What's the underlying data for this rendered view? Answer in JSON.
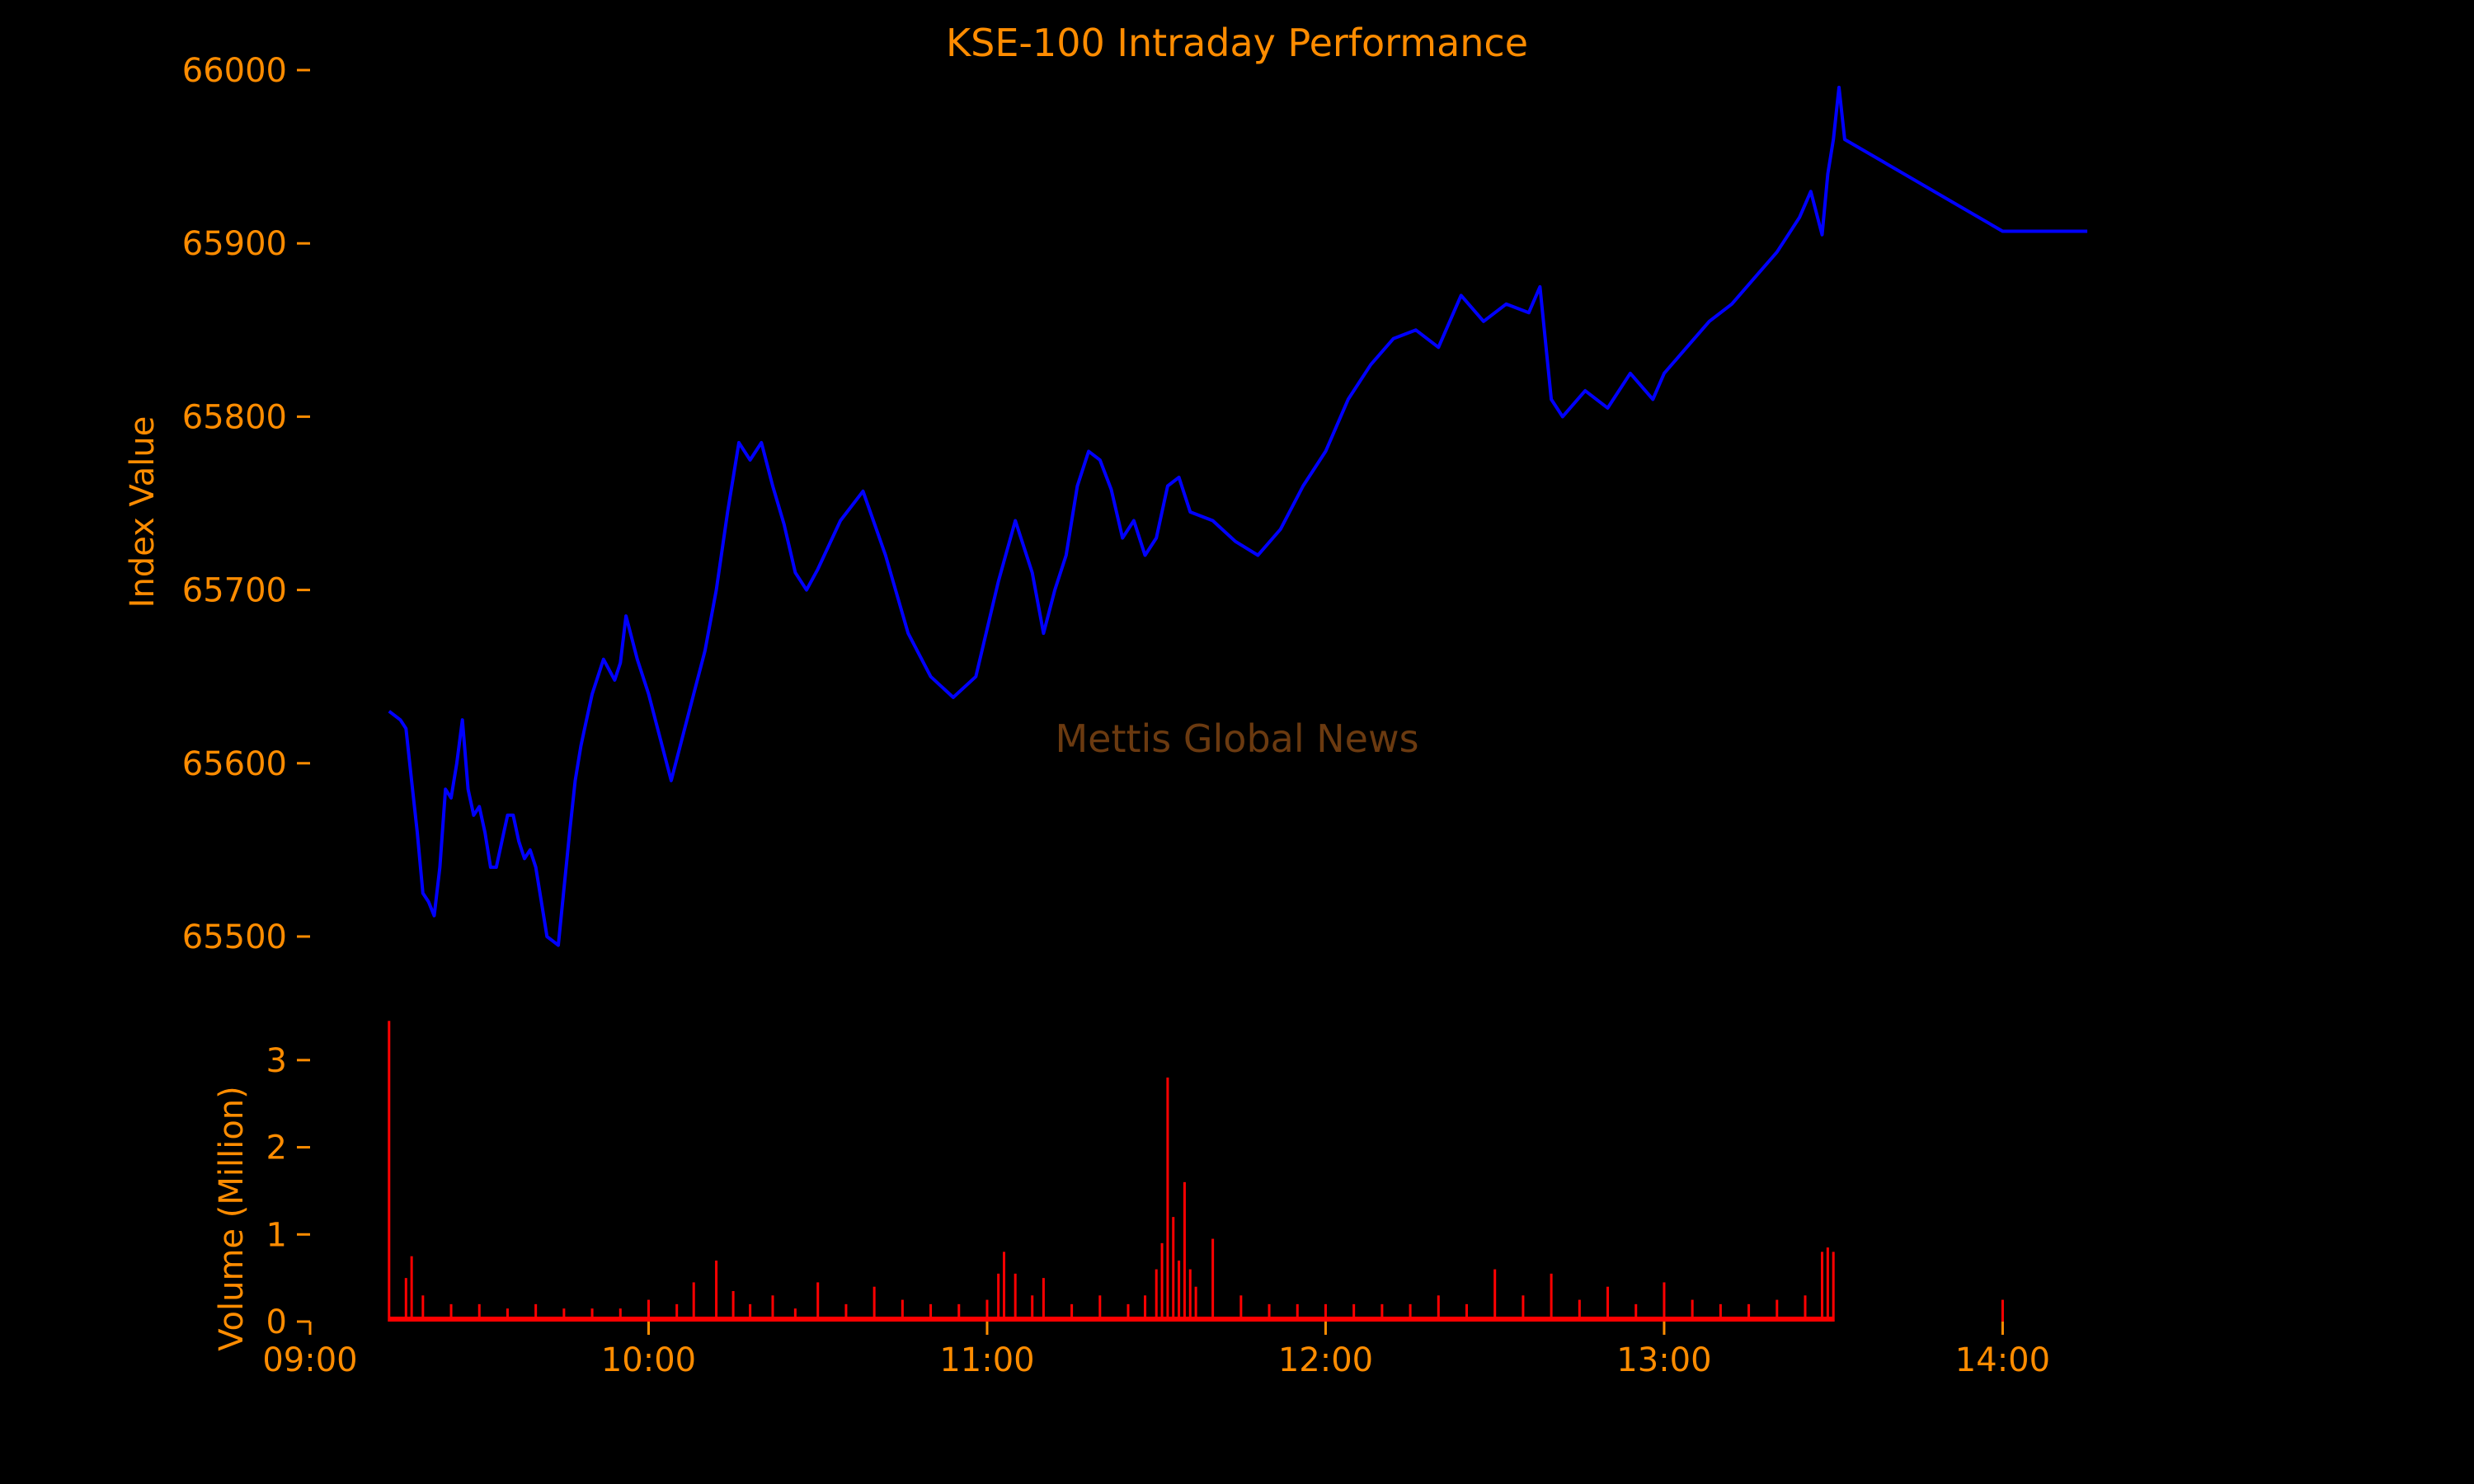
{
  "theme": {
    "background": "#000000",
    "text_color": "#ff8c00",
    "index_line_color": "#0000ff",
    "volume_bar_color": "#ff0000",
    "watermark_color": "#6b3a10"
  },
  "watermark": "Mettis Global News",
  "chart_data": [
    {
      "id": "index",
      "type": "line",
      "title": "KSE-100 Intraday Performance",
      "xlabel": "",
      "ylabel": "Index Value",
      "x_unit": "time (HH:MM)",
      "x_ticks": [
        "09:00",
        "10:00",
        "11:00",
        "12:00",
        "13:00",
        "14:00"
      ],
      "y_ticks": [
        65500,
        65600,
        65700,
        65800,
        65900,
        66000
      ],
      "ylim": [
        65480,
        66010
      ],
      "xlim": [
        "09:00",
        "14:28"
      ],
      "grid": false,
      "series": [
        {
          "color": "#0000ff",
          "x": [
            "09:14",
            "09:16",
            "09:17",
            "09:18",
            "09:19",
            "09:20",
            "09:21",
            "09:22",
            "09:23",
            "09:24",
            "09:25",
            "09:26",
            "09:27",
            "09:28",
            "09:29",
            "09:30",
            "09:31",
            "09:32",
            "09:33",
            "09:34",
            "09:35",
            "09:36",
            "09:37",
            "09:38",
            "09:39",
            "09:40",
            "09:42",
            "09:44",
            "09:46",
            "09:47",
            "09:48",
            "09:49",
            "09:50",
            "09:52",
            "09:54",
            "09:55",
            "09:56",
            "09:58",
            "10:00",
            "10:04",
            "10:08",
            "10:10",
            "10:12",
            "10:14",
            "10:16",
            "10:18",
            "10:20",
            "10:22",
            "10:24",
            "10:26",
            "10:28",
            "10:30",
            "10:34",
            "10:38",
            "10:42",
            "10:46",
            "10:50",
            "10:54",
            "10:58",
            "11:02",
            "11:05",
            "11:08",
            "11:10",
            "11:12",
            "11:14",
            "11:16",
            "11:18",
            "11:20",
            "11:22",
            "11:24",
            "11:26",
            "11:28",
            "11:30",
            "11:32",
            "11:34",
            "11:36",
            "11:40",
            "11:44",
            "11:48",
            "11:52",
            "11:56",
            "12:00",
            "12:04",
            "12:08",
            "12:12",
            "12:16",
            "12:20",
            "12:24",
            "12:28",
            "12:32",
            "12:36",
            "12:38",
            "12:40",
            "12:42",
            "12:46",
            "12:50",
            "12:54",
            "12:58",
            "13:00",
            "13:04",
            "13:08",
            "13:12",
            "13:16",
            "13:20",
            "13:24",
            "13:26",
            "13:28",
            "13:29",
            "13:30",
            "13:31",
            "13:32",
            "14:00",
            "14:15"
          ],
          "values": [
            65630,
            65625,
            65620,
            65590,
            65560,
            65525,
            65520,
            65512,
            65540,
            65585,
            65580,
            65600,
            65625,
            65585,
            65570,
            65575,
            65560,
            65540,
            65540,
            65555,
            65570,
            65570,
            65555,
            65545,
            65550,
            65540,
            65500,
            65495,
            65560,
            65590,
            65610,
            65625,
            65640,
            65660,
            65648,
            65658,
            65685,
            65660,
            65640,
            65590,
            65640,
            65665,
            65700,
            65745,
            65785,
            65775,
            65785,
            65760,
            65738,
            65710,
            65700,
            65712,
            65740,
            65757,
            65720,
            65675,
            65650,
            65638,
            65650,
            65705,
            65740,
            65710,
            65675,
            65700,
            65720,
            65760,
            65780,
            65775,
            65758,
            65730,
            65740,
            65720,
            65730,
            65760,
            65765,
            65745,
            65740,
            65728,
            65720,
            65735,
            65760,
            65780,
            65810,
            65830,
            65845,
            65850,
            65840,
            65870,
            65855,
            65865,
            65860,
            65875,
            65810,
            65800,
            65815,
            65805,
            65825,
            65810,
            65825,
            65840,
            65855,
            65865,
            65880,
            65895,
            65915,
            65930,
            65905,
            65940,
            65960,
            65990,
            65960,
            65907,
            65907
          ]
        }
      ]
    },
    {
      "id": "volume",
      "type": "bar",
      "xlabel": "",
      "ylabel": "Volume (Million)",
      "y_ticks": [
        0,
        1,
        2,
        3
      ],
      "ylim": [
        0,
        3.5
      ],
      "grid": false,
      "series": [
        {
          "color": "#ff0000",
          "x": [
            "09:14",
            "09:17",
            "09:18",
            "09:20",
            "09:25",
            "09:30",
            "09:35",
            "09:40",
            "09:45",
            "09:50",
            "09:55",
            "10:00",
            "10:05",
            "10:08",
            "10:12",
            "10:15",
            "10:18",
            "10:22",
            "10:26",
            "10:30",
            "10:35",
            "10:40",
            "10:45",
            "10:50",
            "10:55",
            "11:00",
            "11:02",
            "11:03",
            "11:05",
            "11:08",
            "11:10",
            "11:15",
            "11:20",
            "11:25",
            "11:28",
            "11:30",
            "11:31",
            "11:32",
            "11:33",
            "11:34",
            "11:35",
            "11:36",
            "11:37",
            "11:40",
            "11:45",
            "11:50",
            "11:55",
            "12:00",
            "12:05",
            "12:10",
            "12:15",
            "12:20",
            "12:25",
            "12:30",
            "12:35",
            "12:40",
            "12:45",
            "12:50",
            "12:55",
            "13:00",
            "13:05",
            "13:10",
            "13:15",
            "13:20",
            "13:25",
            "13:28",
            "13:29",
            "13:30",
            "14:00"
          ],
          "values": [
            3.45,
            0.5,
            0.75,
            0.3,
            0.2,
            0.2,
            0.15,
            0.2,
            0.15,
            0.15,
            0.15,
            0.25,
            0.2,
            0.45,
            0.7,
            0.35,
            0.2,
            0.3,
            0.15,
            0.45,
            0.2,
            0.4,
            0.25,
            0.2,
            0.2,
            0.25,
            0.55,
            0.8,
            0.55,
            0.3,
            0.5,
            0.2,
            0.3,
            0.2,
            0.3,
            0.6,
            0.9,
            2.8,
            1.2,
            0.7,
            1.6,
            0.6,
            0.4,
            0.95,
            0.3,
            0.2,
            0.2,
            0.2,
            0.2,
            0.2,
            0.2,
            0.3,
            0.2,
            0.6,
            0.3,
            0.55,
            0.25,
            0.4,
            0.2,
            0.45,
            0.25,
            0.2,
            0.2,
            0.25,
            0.3,
            0.8,
            0.85,
            0.8,
            0.25
          ]
        }
      ]
    }
  ]
}
